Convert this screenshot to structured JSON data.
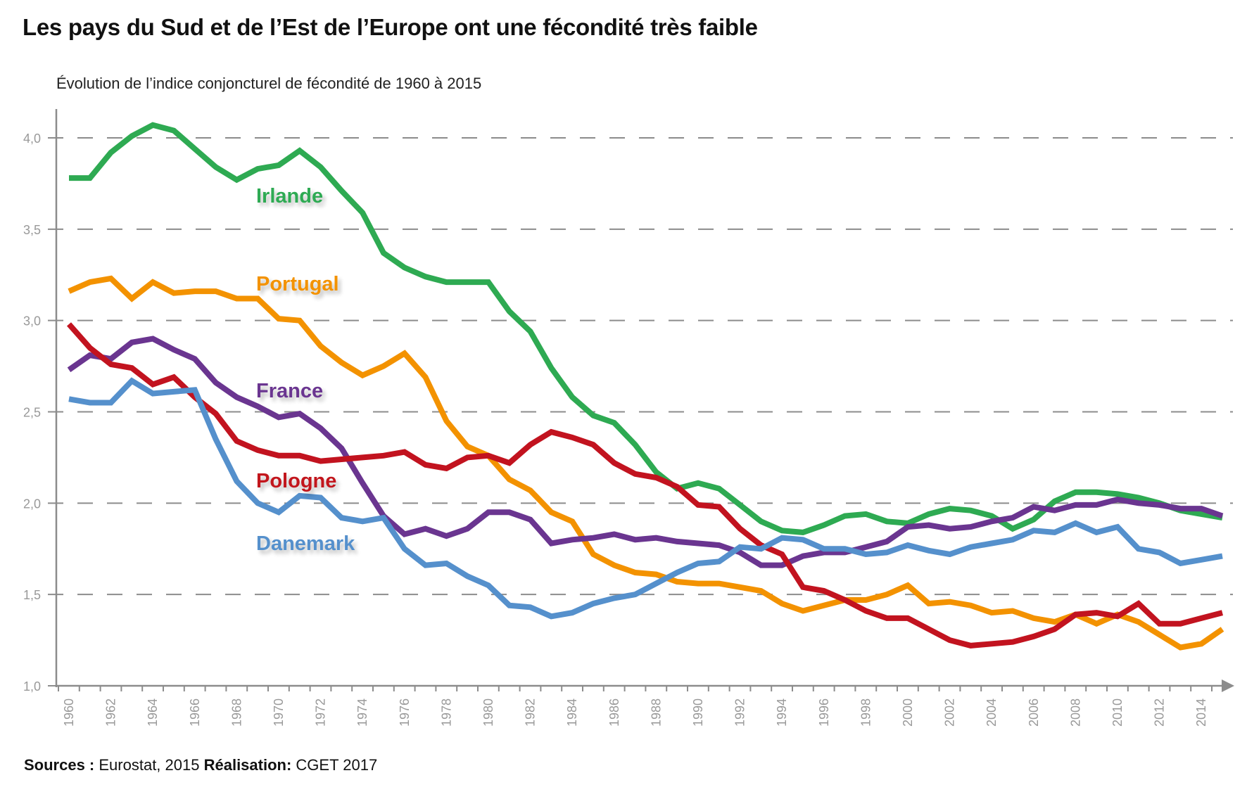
{
  "header": {
    "title": "Les pays du Sud et de l’Est de l’Europe ont une fécondité très faible",
    "subtitle": "Évolution de l’indice conjoncturel de fécondité de 1960 à 2015"
  },
  "footer": {
    "sources_label": "Sources :",
    "sources_value": " Eurostat, 2015 ",
    "realisation_label": "Réalisation:",
    "realisation_value": " CGET 2017"
  },
  "chart_data": {
    "type": "line",
    "title": "Les pays du Sud et de l’Est de l’Europe ont une fécondité très faible",
    "subtitle": "Évolution de l’indice conjoncturel de fécondité de 1960 à 2015",
    "xlabel": "",
    "ylabel": "",
    "ylim": [
      1.0,
      4.0
    ],
    "yticks": [
      "1,0",
      "1,5",
      "2,0",
      "2,5",
      "3,0",
      "3,5",
      "4,0"
    ],
    "ytick_values": [
      1.0,
      1.5,
      2.0,
      2.5,
      3.0,
      3.5,
      4.0
    ],
    "xtick_labels": [
      "1960",
      "1962",
      "1964",
      "1966",
      "1968",
      "1970",
      "1972",
      "1974",
      "1976",
      "1978",
      "1980",
      "1982",
      "1984",
      "1986",
      "1988",
      "1990",
      "1992",
      "1994",
      "1996",
      "1998",
      "2000",
      "2002",
      "2004",
      "2006",
      "2008",
      "2010",
      "2012",
      "2014"
    ],
    "grid": "horizontal-dashed",
    "legend": "inline-labels",
    "x": [
      1960,
      1961,
      1962,
      1963,
      1964,
      1965,
      1966,
      1967,
      1968,
      1969,
      1970,
      1971,
      1972,
      1973,
      1974,
      1975,
      1976,
      1977,
      1978,
      1979,
      1980,
      1981,
      1982,
      1983,
      1984,
      1985,
      1986,
      1987,
      1988,
      1989,
      1990,
      1991,
      1992,
      1993,
      1994,
      1995,
      1996,
      1997,
      1998,
      1999,
      2000,
      2001,
      2002,
      2003,
      2004,
      2005,
      2006,
      2007,
      2008,
      2009,
      2010,
      2011,
      2012,
      2013,
      2014,
      2015
    ],
    "series": [
      {
        "name": "Irlande",
        "color": "#2eaa52",
        "label_year": 1968,
        "label_value": 3.59,
        "values": [
          3.78,
          3.78,
          3.92,
          4.01,
          4.07,
          4.04,
          3.94,
          3.84,
          3.77,
          3.83,
          3.85,
          3.93,
          3.84,
          3.71,
          3.59,
          3.37,
          3.29,
          3.24,
          3.21,
          3.21,
          3.21,
          3.05,
          2.94,
          2.74,
          2.58,
          2.48,
          2.44,
          2.32,
          2.17,
          2.08,
          2.11,
          2.08,
          1.99,
          1.9,
          1.85,
          1.84,
          1.88,
          1.93,
          1.94,
          1.9,
          1.89,
          1.94,
          1.97,
          1.96,
          1.93,
          1.86,
          1.91,
          2.01,
          2.06,
          2.06,
          2.05,
          2.03,
          2.0,
          1.96,
          1.94,
          1.92
        ]
      },
      {
        "name": "Portugal",
        "color": "#f39200",
        "label_year": 1968,
        "label_value": 3.11,
        "values": [
          3.16,
          3.21,
          3.23,
          3.12,
          3.21,
          3.15,
          3.16,
          3.16,
          3.12,
          3.12,
          3.01,
          3.0,
          2.86,
          2.77,
          2.7,
          2.75,
          2.82,
          2.69,
          2.45,
          2.31,
          2.26,
          2.13,
          2.07,
          1.95,
          1.9,
          1.72,
          1.66,
          1.62,
          1.61,
          1.57,
          1.56,
          1.56,
          1.54,
          1.52,
          1.45,
          1.41,
          1.44,
          1.47,
          1.47,
          1.5,
          1.55,
          1.45,
          1.46,
          1.44,
          1.4,
          1.41,
          1.37,
          1.35,
          1.39,
          1.34,
          1.39,
          1.35,
          1.28,
          1.21,
          1.23,
          1.31
        ]
      },
      {
        "name": "France",
        "color": "#6a3590",
        "label_year": 1968,
        "label_value": 2.52,
        "values": [
          2.73,
          2.81,
          2.79,
          2.88,
          2.9,
          2.84,
          2.79,
          2.66,
          2.58,
          2.53,
          2.47,
          2.49,
          2.41,
          2.3,
          2.11,
          1.93,
          1.83,
          1.86,
          1.82,
          1.86,
          1.95,
          1.95,
          1.91,
          1.78,
          1.8,
          1.81,
          1.83,
          1.8,
          1.81,
          1.79,
          1.78,
          1.77,
          1.73,
          1.66,
          1.66,
          1.71,
          1.73,
          1.73,
          1.76,
          1.79,
          1.87,
          1.88,
          1.86,
          1.87,
          1.9,
          1.92,
          1.98,
          1.96,
          1.99,
          1.99,
          2.02,
          2.0,
          1.99,
          1.97,
          1.97,
          1.93
        ]
      },
      {
        "name": "Pologne",
        "color": "#c2131f",
        "label_year": 1968,
        "label_value": 2.04,
        "values": [
          2.98,
          2.85,
          2.76,
          2.74,
          2.65,
          2.69,
          2.58,
          2.49,
          2.34,
          2.29,
          2.26,
          2.26,
          2.23,
          2.24,
          2.25,
          2.26,
          2.28,
          2.21,
          2.19,
          2.25,
          2.26,
          2.22,
          2.32,
          2.39,
          2.36,
          2.32,
          2.22,
          2.16,
          2.14,
          2.09,
          1.99,
          1.98,
          1.86,
          1.77,
          1.72,
          1.54,
          1.52,
          1.47,
          1.41,
          1.37,
          1.37,
          1.31,
          1.25,
          1.22,
          1.23,
          1.24,
          1.27,
          1.31,
          1.39,
          1.4,
          1.38,
          1.45,
          1.34,
          1.34,
          1.37,
          1.4
        ]
      },
      {
        "name": "Danemark",
        "color": "#5590cc",
        "label_year": 1968,
        "label_value": 1.78,
        "values": [
          2.57,
          2.55,
          2.55,
          2.67,
          2.6,
          2.61,
          2.62,
          2.35,
          2.12,
          2.0,
          1.95,
          2.04,
          2.03,
          1.92,
          1.9,
          1.92,
          1.75,
          1.66,
          1.67,
          1.6,
          1.55,
          1.44,
          1.43,
          1.38,
          1.4,
          1.45,
          1.48,
          1.5,
          1.56,
          1.62,
          1.67,
          1.68,
          1.76,
          1.75,
          1.81,
          1.8,
          1.75,
          1.75,
          1.72,
          1.73,
          1.77,
          1.74,
          1.72,
          1.76,
          1.78,
          1.8,
          1.85,
          1.84,
          1.89,
          1.84,
          1.87,
          1.75,
          1.73,
          1.67,
          1.69,
          1.71
        ]
      }
    ]
  }
}
